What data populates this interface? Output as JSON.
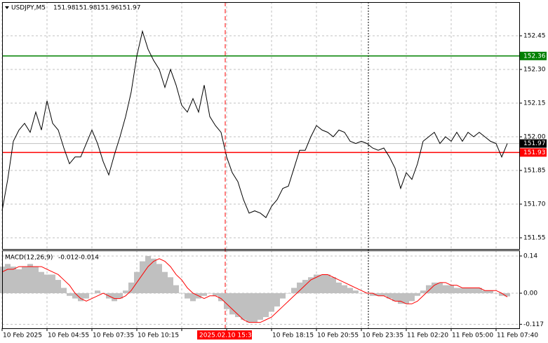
{
  "chart_data": [
    {
      "type": "line",
      "symbol": "USDJPY,M5",
      "ohlc": [
        151.98,
        151.98,
        151.96,
        151.97
      ],
      "categories": [
        "10 Feb 2025",
        null,
        null,
        null,
        null,
        null,
        null,
        null,
        "10 Feb 04:55",
        null,
        null,
        null,
        null,
        null,
        null,
        null,
        "10 Feb 07:35",
        null,
        null,
        null,
        null,
        null,
        null,
        null,
        "10 Feb 10:15",
        null,
        null,
        null,
        null,
        null,
        null,
        null,
        null,
        null,
        null,
        null,
        null,
        null,
        null,
        null,
        null,
        null,
        null,
        null,
        null,
        null,
        null,
        null,
        "10 Feb 18:15",
        null,
        null,
        null,
        null,
        null,
        null,
        null,
        "10 Feb 20:55",
        null,
        null,
        null,
        null,
        null,
        null,
        null,
        "10 Feb 23:35",
        null,
        null,
        null,
        null,
        null,
        null,
        null,
        "11 Feb 02:20",
        null,
        null,
        null,
        null,
        null,
        null,
        null,
        "11 Feb 05:00",
        null,
        null,
        null,
        null,
        null,
        null,
        null,
        "11 Feb 07:40",
        null,
        null
      ],
      "values": [
        151.67,
        151.81,
        151.98,
        152.03,
        152.06,
        152.02,
        152.11,
        152.03,
        152.16,
        152.06,
        152.03,
        151.95,
        151.88,
        151.91,
        151.91,
        151.97,
        152.03,
        151.97,
        151.89,
        151.83,
        151.92,
        152.0,
        152.09,
        152.2,
        152.36,
        152.47,
        152.39,
        152.34,
        152.3,
        152.22,
        152.3,
        152.23,
        152.14,
        152.11,
        152.17,
        152.11,
        152.23,
        152.09,
        152.05,
        152.02,
        151.91,
        151.84,
        151.8,
        151.72,
        151.66,
        151.67,
        151.66,
        151.64,
        151.69,
        151.72,
        151.77,
        151.78,
        151.86,
        151.94,
        151.94,
        152.0,
        152.05,
        152.03,
        152.02,
        152.0,
        152.03,
        152.02,
        151.98,
        151.97,
        151.98,
        151.97,
        151.95,
        151.94,
        151.95,
        151.91,
        151.86,
        151.77,
        151.84,
        151.81,
        151.88,
        151.98,
        152.0,
        152.02,
        151.97,
        152.0,
        151.98,
        152.02,
        151.98,
        152.02,
        152.0,
        152.02,
        152.0,
        151.98,
        151.97,
        151.91,
        151.97
      ],
      "color": "#000000",
      "ylim": [
        151.5,
        152.6
      ],
      "yticks": [
        152.45,
        {
          "value": 152.3,
          "label": "152.30"
        },
        152.15,
        {
          "value": 152,
          "label": "152.00"
        },
        151.85,
        {
          "value": 151.7,
          "label": "151.70"
        },
        151.55
      ],
      "grid": true,
      "levels": [
        {
          "value": 152.36,
          "color": "#008000"
        },
        {
          "value": 151.93,
          "color": "#ff0000"
        }
      ],
      "crosshair": {
        "label": "2025.02.10 15:30",
        "color": "#ff0000"
      }
    },
    {
      "type": "macd",
      "title": "MACD(12,26,9)",
      "series": [
        {
          "color": "#c0c0c0",
          "values": [
            0.1,
            0.11,
            0.1,
            0.09,
            0.1,
            0.11,
            0.1,
            0.08,
            0.07,
            0.07,
            0.05,
            0.02,
            -0.01,
            -0.02,
            -0.03,
            -0.02,
            0.0,
            0.01,
            0.0,
            -0.02,
            -0.03,
            -0.02,
            0.01,
            0.04,
            0.08,
            0.12,
            0.14,
            0.13,
            0.11,
            0.08,
            0.06,
            0.03,
            0.0,
            -0.02,
            -0.03,
            -0.02,
            -0.01,
            0.0,
            -0.01,
            -0.03,
            -0.06,
            -0.08,
            -0.09,
            -0.1,
            -0.11,
            -0.11,
            -0.1,
            -0.09,
            -0.07,
            -0.05,
            -0.02,
            0.0,
            0.02,
            0.04,
            0.05,
            0.06,
            0.07,
            0.07,
            0.07,
            0.06,
            0.04,
            0.03,
            0.02,
            0.01,
            0.0,
            0.0,
            -0.01,
            -0.01,
            -0.01,
            -0.02,
            -0.03,
            -0.04,
            -0.04,
            -0.03,
            -0.01,
            0.01,
            0.03,
            0.04,
            0.04,
            0.03,
            0.03,
            0.02,
            0.02,
            0.02,
            0.02,
            0.02,
            0.01,
            0.01,
            0.0,
            -0.01,
            -0.012
          ]
        },
        {
          "color": "#ff0000",
          "values": [
            0.08,
            0.09,
            0.09,
            0.1,
            0.1,
            0.1,
            0.1,
            0.1,
            0.09,
            0.08,
            0.07,
            0.05,
            0.03,
            0.0,
            -0.02,
            -0.03,
            -0.02,
            -0.01,
            0.0,
            -0.01,
            -0.02,
            -0.02,
            -0.01,
            0.01,
            0.04,
            0.07,
            0.1,
            0.12,
            0.13,
            0.12,
            0.1,
            0.07,
            0.05,
            0.02,
            0.0,
            -0.01,
            -0.02,
            -0.01,
            -0.01,
            -0.02,
            -0.04,
            -0.06,
            -0.08,
            -0.1,
            -0.11,
            -0.11,
            -0.11,
            -0.1,
            -0.09,
            -0.07,
            -0.05,
            -0.03,
            -0.01,
            0.01,
            0.03,
            0.05,
            0.06,
            0.07,
            0.07,
            0.06,
            0.05,
            0.04,
            0.03,
            0.02,
            0.01,
            0.0,
            0.0,
            -0.01,
            -0.01,
            -0.02,
            -0.03,
            -0.03,
            -0.04,
            -0.04,
            -0.03,
            -0.01,
            0.01,
            0.03,
            0.04,
            0.04,
            0.03,
            0.03,
            0.02,
            0.02,
            0.02,
            0.02,
            0.01,
            0.01,
            0.01,
            0.0,
            -0.014
          ]
        }
      ],
      "ylim": [
        -0.132,
        0.161
      ],
      "yticks": [
        0.14,
        {
          "value": 0,
          "label": "0.00"
        },
        -0.117
      ]
    }
  ]
}
